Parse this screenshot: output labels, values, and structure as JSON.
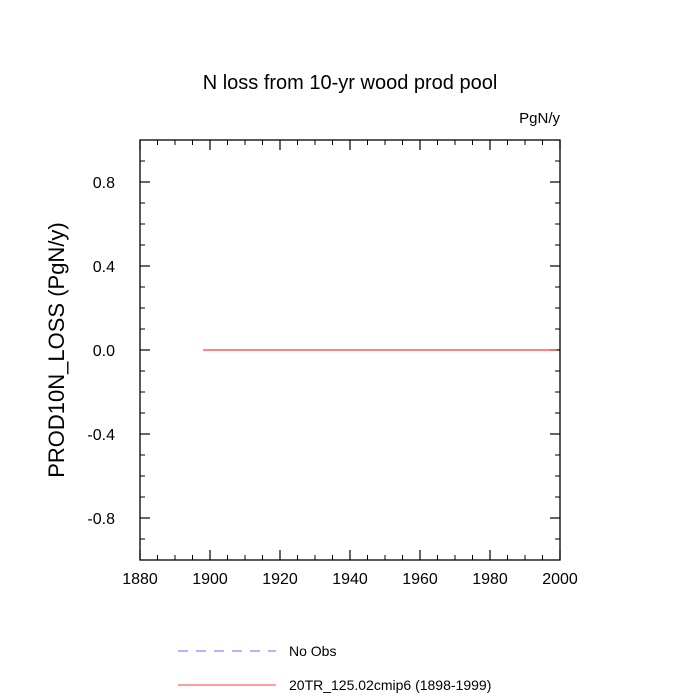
{
  "chart_data": {
    "type": "line",
    "title": "N loss from 10-yr wood prod pool",
    "units_label": "PgN/y",
    "xlabel": "",
    "ylabel": "PROD10N_LOSS  (PgN/y)",
    "xlim": [
      1880,
      2000
    ],
    "ylim": [
      -1.0,
      1.0
    ],
    "x_ticks": [
      1880,
      1900,
      1920,
      1940,
      1960,
      1980,
      2000
    ],
    "y_ticks": [
      -0.8,
      -0.4,
      0.0,
      0.4,
      0.8
    ],
    "y_tick_labels": [
      "-0.8",
      "-0.4",
      "0.0",
      "0.4",
      "0.8"
    ],
    "x_minor_step": 5,
    "y_minor_step": 0.1,
    "grid": false,
    "legend_position": "bottom",
    "series": [
      {
        "name": "No Obs",
        "x": [],
        "values": [],
        "color": "#6b6bff",
        "dash": "dashed"
      },
      {
        "name": "20TR_125.02cmip6 (1898-1999)",
        "x": [
          1898,
          1999
        ],
        "values": [
          0.0,
          0.0
        ],
        "color": "#ff3b3b",
        "dash": "solid"
      }
    ]
  }
}
